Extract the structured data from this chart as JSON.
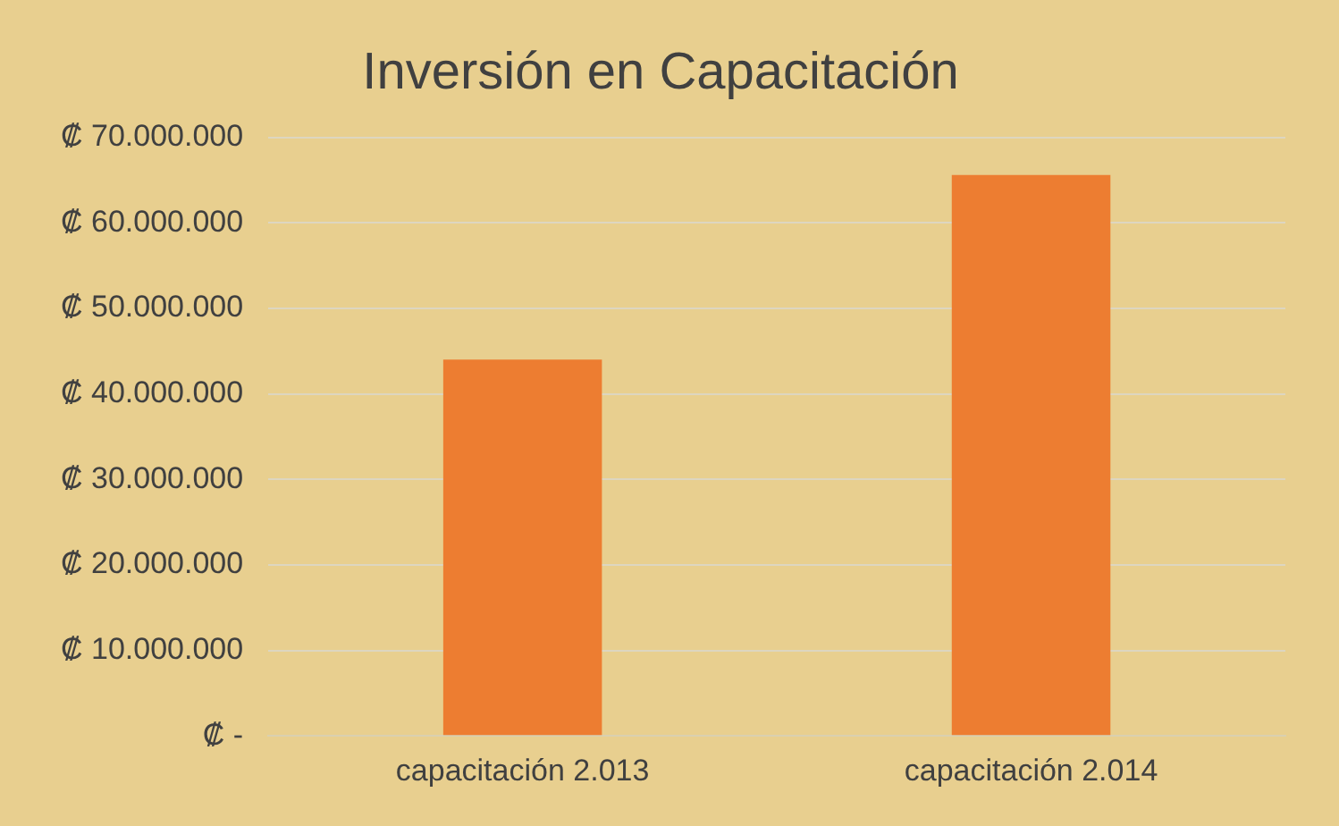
{
  "chart_data": {
    "type": "bar",
    "title": "Inversión en Capacitación",
    "categories": [
      "capacitación 2.013",
      "capacitación 2.014"
    ],
    "values": [
      44000000,
      65600000
    ],
    "color": "#ed7d31",
    "ylim": [
      0,
      70000000
    ],
    "yticks": [
      {
        "value": 0,
        "label": "₡ -"
      },
      {
        "value": 10000000,
        "label": "₡ 10.000.000"
      },
      {
        "value": 20000000,
        "label": "₡ 20.000.000"
      },
      {
        "value": 30000000,
        "label": "₡ 30.000.000"
      },
      {
        "value": 40000000,
        "label": "₡ 40.000.000"
      },
      {
        "value": 50000000,
        "label": "₡ 50.000.000"
      },
      {
        "value": 60000000,
        "label": "₡ 60.000.000"
      },
      {
        "value": 70000000,
        "label": "₡ 70.000.000"
      }
    ],
    "grid": "y",
    "legend": false
  }
}
